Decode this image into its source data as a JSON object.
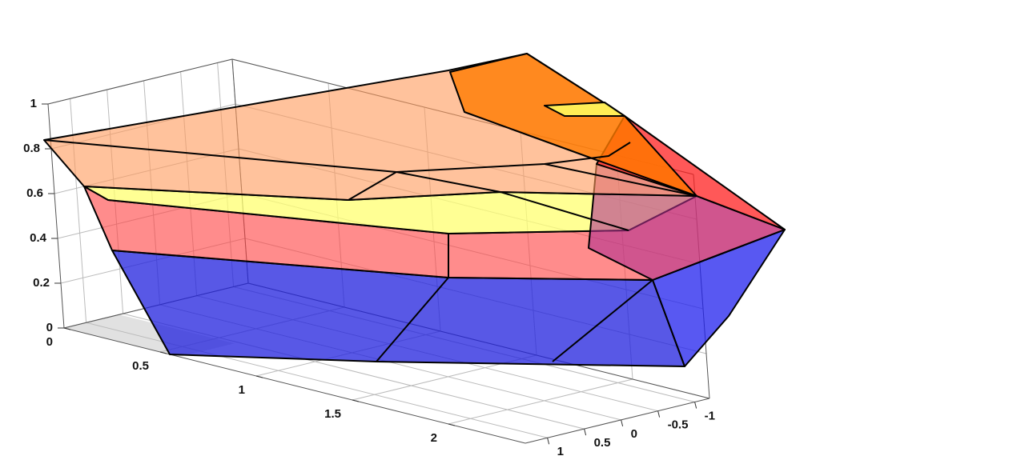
{
  "chart_data": {
    "type": "surface3d",
    "xlim": [
      0,
      2.4
    ],
    "ylim": [
      -1.2,
      1.3
    ],
    "zlim": [
      0,
      1
    ],
    "xticks": [
      0,
      0.5,
      1,
      1.5,
      2
    ],
    "yticks": [
      -1,
      -0.5,
      0,
      0.5,
      1
    ],
    "zticks": [
      0,
      0.2,
      0.4,
      0.6,
      0.8,
      1
    ],
    "grid": true
  }
}
